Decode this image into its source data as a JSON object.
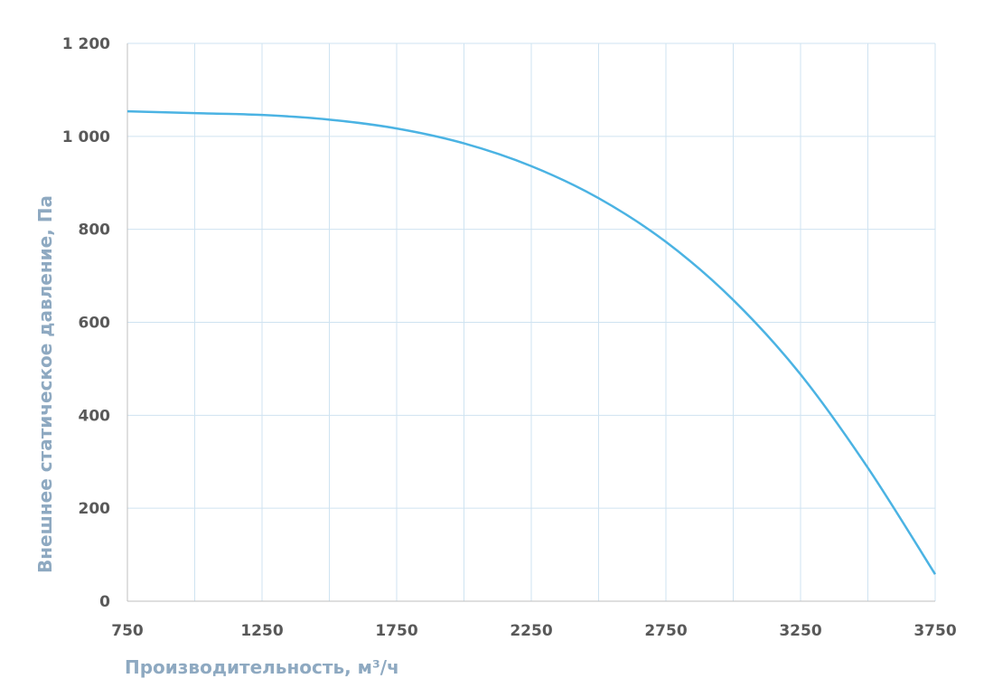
{
  "chart_data": {
    "type": "line",
    "title": "",
    "xlabel": "Производительность, м³/ч",
    "ylabel": "Внешнее  статическое  давление, Па",
    "x_ticks": [
      "750",
      "1250",
      "1750",
      "2250",
      "2750",
      "3250",
      "3750"
    ],
    "y_ticks": [
      "0",
      "200",
      "400",
      "600",
      "800",
      "1 000",
      "1 200"
    ],
    "xlim": [
      750,
      3750
    ],
    "ylim": [
      0,
      1200
    ],
    "x_minor_step": 250,
    "y_step": 200,
    "grid": true,
    "legend": "none",
    "series": [
      {
        "color": "#4bb3e3",
        "points": [
          [
            750,
            1054
          ],
          [
            1000,
            1050
          ],
          [
            1250,
            1046
          ],
          [
            1500,
            1036
          ],
          [
            1750,
            1017
          ],
          [
            2000,
            985
          ],
          [
            2250,
            936
          ],
          [
            2500,
            867
          ],
          [
            2750,
            773
          ],
          [
            3000,
            648
          ],
          [
            3250,
            488
          ],
          [
            3500,
            287
          ],
          [
            3750,
            58
          ]
        ]
      }
    ]
  }
}
